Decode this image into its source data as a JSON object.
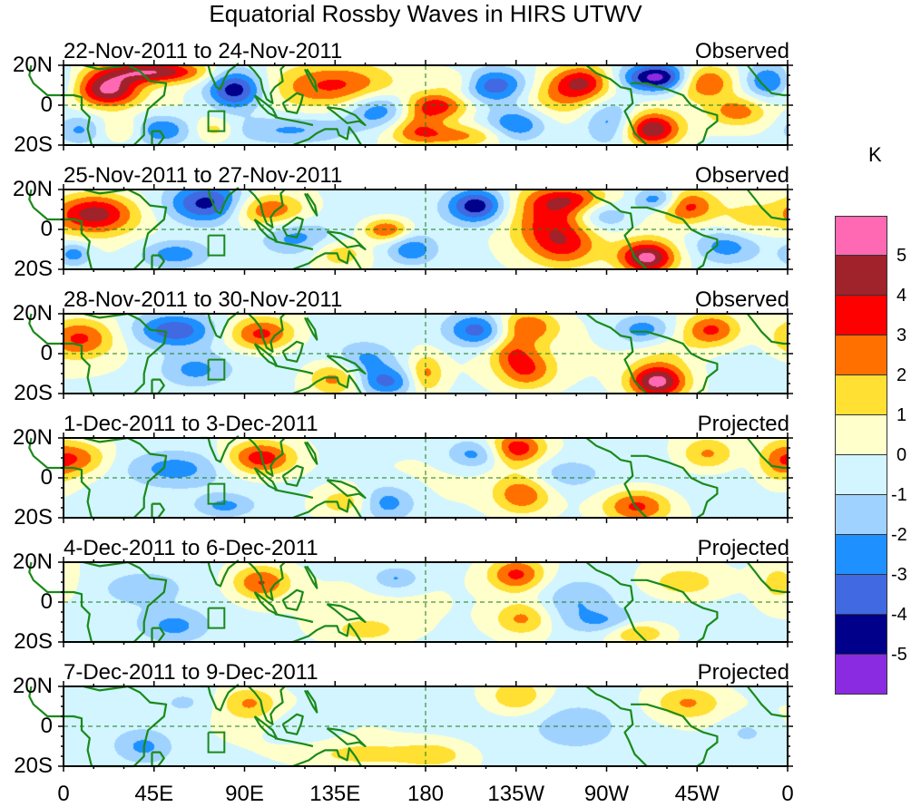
{
  "chart_data": {
    "type": "heatmap",
    "title": "Equatorial Rossby Waves in HIRS UTWV",
    "units": "K",
    "x_ticks": [
      "0",
      "45E",
      "90E",
      "135E",
      "180",
      "135W",
      "90W",
      "45W",
      "0"
    ],
    "x_range_deg_east": [
      0,
      360
    ],
    "y_ticks": [
      "20N",
      "0",
      "20S"
    ],
    "y_range_deg": [
      -20,
      20
    ],
    "colorbar": {
      "levels": [
        5,
        4,
        3,
        2,
        1,
        0,
        -1,
        -2,
        -3,
        -4,
        -5
      ],
      "colors": [
        "#ff69b4",
        "#a0222a",
        "#ff0000",
        "#ff7000",
        "#ffe033",
        "#ffffcc",
        "#d2f5ff",
        "#a0d2ff",
        "#1e90ff",
        "#4169e1",
        "#00008b",
        "#8a2be2"
      ]
    },
    "panels": [
      {
        "period": "22-Nov-2011 to 24-Nov-2011",
        "label": "Observed",
        "blobs": [
          [
            22,
            8,
            5.3,
            11,
            6
          ],
          [
            45,
            17,
            5,
            18,
            4
          ],
          [
            30,
            -12,
            1.5,
            8,
            4
          ],
          [
            8,
            -12,
            -2,
            8,
            5
          ],
          [
            85,
            8,
            -4.8,
            10,
            7
          ],
          [
            48,
            -12,
            -3,
            10,
            5
          ],
          [
            75,
            -12,
            1.8,
            7,
            4
          ],
          [
            112,
            -12,
            -2,
            22,
            5
          ],
          [
            135,
            10,
            3.5,
            22,
            8
          ],
          [
            158,
            -2,
            -3,
            12,
            6
          ],
          [
            185,
            0,
            4,
            12,
            5
          ],
          [
            195,
            12,
            1.5,
            8,
            4
          ],
          [
            175,
            -10,
            2.5,
            10,
            6
          ],
          [
            215,
            10,
            -3.5,
            12,
            6
          ],
          [
            225,
            -10,
            -3,
            10,
            6
          ],
          [
            245,
            5,
            2.2,
            15,
            8
          ],
          [
            258,
            12,
            3.5,
            10,
            6
          ],
          [
            272,
            -8,
            -2.5,
            9,
            8
          ],
          [
            295,
            14,
            -5.5,
            12,
            5
          ],
          [
            292,
            -12,
            5,
            10,
            6
          ],
          [
            318,
            12,
            3.5,
            10,
            6
          ],
          [
            335,
            -3,
            2.5,
            10,
            5
          ],
          [
            350,
            12,
            -3,
            8,
            6
          ],
          [
            195,
            -15,
            2.5,
            20,
            4
          ]
        ]
      },
      {
        "period": "25-Nov-2011 to 27-Nov-2011",
        "label": "Observed",
        "blobs": [
          [
            15,
            8,
            4.5,
            14,
            7
          ],
          [
            72,
            13,
            -4.5,
            14,
            7
          ],
          [
            100,
            10,
            3.5,
            14,
            6
          ],
          [
            115,
            -4,
            -2,
            12,
            6
          ],
          [
            55,
            -12,
            -2.5,
            12,
            5
          ],
          [
            160,
            0,
            3.5,
            8,
            4
          ],
          [
            137,
            -12,
            2,
            10,
            5
          ],
          [
            173,
            -10,
            -2.5,
            8,
            5
          ],
          [
            205,
            12,
            -4.5,
            10,
            6
          ],
          [
            240,
            5,
            3,
            14,
            12
          ],
          [
            250,
            -8,
            2.5,
            12,
            8
          ],
          [
            255,
            15,
            3,
            15,
            5
          ],
          [
            268,
            8,
            -2.5,
            10,
            6
          ],
          [
            290,
            -14,
            5.5,
            10,
            6
          ],
          [
            295,
            15,
            -3,
            8,
            4
          ],
          [
            310,
            12,
            3.5,
            10,
            6
          ],
          [
            330,
            -8,
            -2.5,
            12,
            6
          ],
          [
            5,
            -12,
            -2.5,
            6,
            4
          ],
          [
            340,
            5,
            1.5,
            10,
            8
          ]
        ]
      },
      {
        "period": "28-Nov-2011 to 30-Nov-2011",
        "label": "Observed",
        "blobs": [
          [
            8,
            8,
            3.2,
            12,
            7
          ],
          [
            55,
            12,
            -3.5,
            14,
            6
          ],
          [
            98,
            10,
            3.7,
            12,
            6
          ],
          [
            65,
            -8,
            -2,
            12,
            6
          ],
          [
            135,
            -12,
            2.8,
            10,
            6
          ],
          [
            150,
            -3,
            -2,
            10,
            6
          ],
          [
            160,
            -14,
            -3,
            10,
            5
          ],
          [
            180,
            -10,
            2.5,
            6,
            7
          ],
          [
            208,
            12,
            -4,
            12,
            6
          ],
          [
            228,
            14,
            3.5,
            12,
            6
          ],
          [
            230,
            -8,
            3,
            10,
            7
          ],
          [
            222,
            2,
            2,
            8,
            6
          ],
          [
            295,
            -14,
            5.5,
            10,
            6
          ],
          [
            288,
            12,
            -2.5,
            10,
            5
          ],
          [
            322,
            12,
            3.5,
            10,
            6
          ],
          [
            300,
            0,
            1,
            12,
            8
          ]
        ]
      },
      {
        "period": "1-Dec-2011 to 3-Dec-2011",
        "label": "Projected",
        "blobs": [
          [
            8,
            10,
            2.5,
            10,
            6
          ],
          [
            98,
            10,
            4,
            12,
            6
          ],
          [
            55,
            5,
            -2,
            16,
            6
          ],
          [
            80,
            -14,
            -2,
            10,
            4
          ],
          [
            140,
            -12,
            2,
            10,
            5
          ],
          [
            160,
            -12,
            -2.5,
            10,
            6
          ],
          [
            205,
            12,
            -2.5,
            10,
            5
          ],
          [
            225,
            15,
            4,
            10,
            6
          ],
          [
            228,
            -8,
            3,
            10,
            7
          ],
          [
            285,
            -14,
            3.5,
            12,
            6
          ],
          [
            320,
            12,
            2.5,
            10,
            6
          ],
          [
            355,
            8,
            2.2,
            8,
            8
          ],
          [
            248,
            2,
            -1.5,
            14,
            6
          ]
        ]
      },
      {
        "period": "4-Dec-2011 to 6-Dec-2011",
        "label": "Projected",
        "blobs": [
          [
            98,
            10,
            3.2,
            10,
            6
          ],
          [
            55,
            -12,
            -2,
            12,
            6
          ],
          [
            40,
            8,
            -1.2,
            14,
            6
          ],
          [
            150,
            -14,
            1.5,
            14,
            5
          ],
          [
            165,
            12,
            -2,
            8,
            4
          ],
          [
            225,
            14,
            3.5,
            10,
            6
          ],
          [
            228,
            -8,
            2.5,
            10,
            6
          ],
          [
            255,
            0,
            -1.5,
            12,
            8
          ],
          [
            285,
            -15,
            2.5,
            10,
            4
          ],
          [
            308,
            10,
            2,
            14,
            6
          ],
          [
            355,
            10,
            1.5,
            8,
            8
          ],
          [
            270,
            -10,
            -1.5,
            12,
            4
          ]
        ]
      },
      {
        "period": "7-Dec-2011 to 9-Dec-2011",
        "label": "Projected",
        "blobs": [
          [
            92,
            12,
            2.2,
            10,
            6
          ],
          [
            40,
            -10,
            -2,
            10,
            6
          ],
          [
            150,
            -14,
            1.5,
            22,
            5
          ],
          [
            185,
            -14,
            1.5,
            12,
            5
          ],
          [
            225,
            15,
            2.2,
            10,
            6
          ],
          [
            255,
            0,
            -1.2,
            14,
            8
          ],
          [
            310,
            12,
            2.3,
            12,
            6
          ],
          [
            340,
            -3,
            -1.2,
            10,
            6
          ],
          [
            60,
            12,
            -1,
            10,
            5
          ],
          [
            120,
            0,
            -1,
            12,
            6
          ]
        ]
      }
    ],
    "grid": "dashed equator and 180 meridian",
    "legend": "right"
  }
}
